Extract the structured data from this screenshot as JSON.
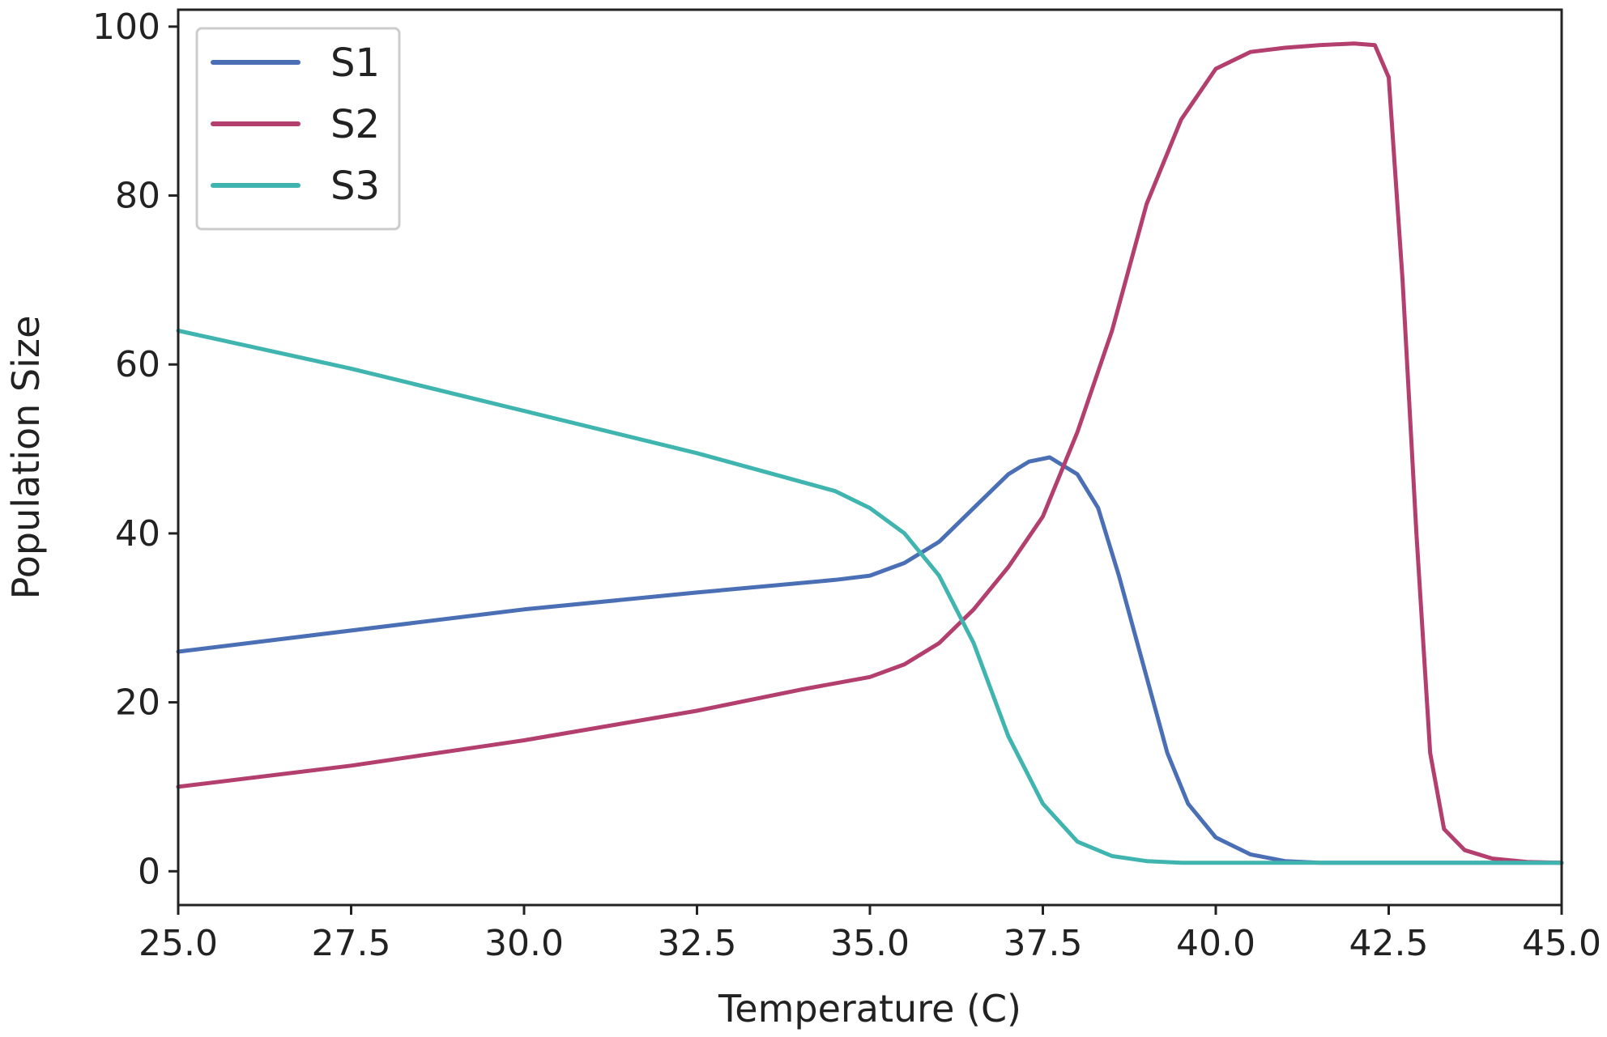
{
  "chart_data": {
    "type": "line",
    "title": "",
    "xlabel": "Temperature (C)",
    "ylabel": "Population Size",
    "xlim": [
      25.0,
      45.0
    ],
    "ylim": [
      -4,
      102
    ],
    "xticks": [
      25.0,
      27.5,
      30.0,
      32.5,
      35.0,
      37.5,
      40.0,
      42.5,
      45.0
    ],
    "xtick_labels": [
      "25.0",
      "27.5",
      "30.0",
      "32.5",
      "35.0",
      "37.5",
      "40.0",
      "42.5",
      "45.0"
    ],
    "yticks": [
      0,
      20,
      40,
      60,
      80,
      100
    ],
    "ytick_labels": [
      "0",
      "20",
      "40",
      "60",
      "80",
      "100"
    ],
    "grid": false,
    "legend_position": "top-left",
    "series": [
      {
        "name": "S1",
        "color": "#4a6fb5",
        "x": [
          25.0,
          27.5,
          30.0,
          32.5,
          34.5,
          35.0,
          35.5,
          36.0,
          36.5,
          37.0,
          37.3,
          37.6,
          38.0,
          38.3,
          38.6,
          39.0,
          39.3,
          39.6,
          40.0,
          40.5,
          41.0,
          41.5,
          42.0,
          45.0
        ],
        "y": [
          26,
          28.5,
          31,
          33,
          34.5,
          35,
          36.5,
          39,
          43,
          47,
          48.5,
          49,
          47,
          43,
          35,
          23,
          14,
          8,
          4,
          2,
          1.2,
          1,
          1,
          1
        ]
      },
      {
        "name": "S2",
        "color": "#b33f6e",
        "x": [
          25.0,
          27.5,
          30.0,
          32.5,
          34.0,
          35.0,
          35.5,
          36.0,
          36.5,
          37.0,
          37.5,
          38.0,
          38.5,
          39.0,
          39.5,
          40.0,
          40.5,
          41.0,
          41.5,
          42.0,
          42.3,
          42.5,
          42.7,
          42.9,
          43.1,
          43.3,
          43.6,
          44.0,
          44.5,
          45.0
        ],
        "y": [
          10,
          12.5,
          15.5,
          19,
          21.5,
          23,
          24.5,
          27,
          31,
          36,
          42,
          52,
          64,
          79,
          89,
          95,
          97,
          97.5,
          97.8,
          98,
          97.8,
          94,
          70,
          40,
          14,
          5,
          2.5,
          1.5,
          1.1,
          1
        ]
      },
      {
        "name": "S3",
        "color": "#40b5b0",
        "x": [
          25.0,
          27.5,
          30.0,
          32.5,
          34.5,
          35.0,
          35.5,
          36.0,
          36.5,
          37.0,
          37.5,
          38.0,
          38.5,
          39.0,
          39.5,
          40.0,
          45.0
        ],
        "y": [
          64,
          59.5,
          54.5,
          49.5,
          45,
          43,
          40,
          35,
          27,
          16,
          8,
          3.5,
          1.8,
          1.2,
          1,
          1,
          1
        ]
      }
    ]
  }
}
